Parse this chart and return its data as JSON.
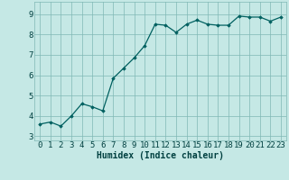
{
  "x": [
    0,
    1,
    2,
    3,
    4,
    5,
    6,
    7,
    8,
    9,
    10,
    11,
    12,
    13,
    14,
    15,
    16,
    17,
    18,
    19,
    20,
    21,
    22,
    23
  ],
  "y": [
    3.6,
    3.7,
    3.5,
    4.0,
    4.6,
    4.45,
    4.25,
    5.85,
    6.35,
    6.85,
    7.45,
    8.5,
    8.45,
    8.1,
    8.5,
    8.7,
    8.5,
    8.45,
    8.45,
    8.9,
    8.85,
    8.85,
    8.65,
    8.85
  ],
  "line_color": "#006060",
  "marker": "D",
  "marker_size": 1.8,
  "bg_color": "#c5e8e5",
  "grid_color": "#80b8b5",
  "xlabel": "Humidex (Indice chaleur)",
  "xlabel_color": "#004040",
  "xlabel_fontsize": 7,
  "tick_color": "#004040",
  "tick_fontsize": 6.5,
  "ylim": [
    2.8,
    9.6
  ],
  "xlim": [
    -0.5,
    23.5
  ],
  "yticks": [
    3,
    4,
    5,
    6,
    7,
    8,
    9
  ],
  "xticks": [
    0,
    1,
    2,
    3,
    4,
    5,
    6,
    7,
    8,
    9,
    10,
    11,
    12,
    13,
    14,
    15,
    16,
    17,
    18,
    19,
    20,
    21,
    22,
    23
  ]
}
